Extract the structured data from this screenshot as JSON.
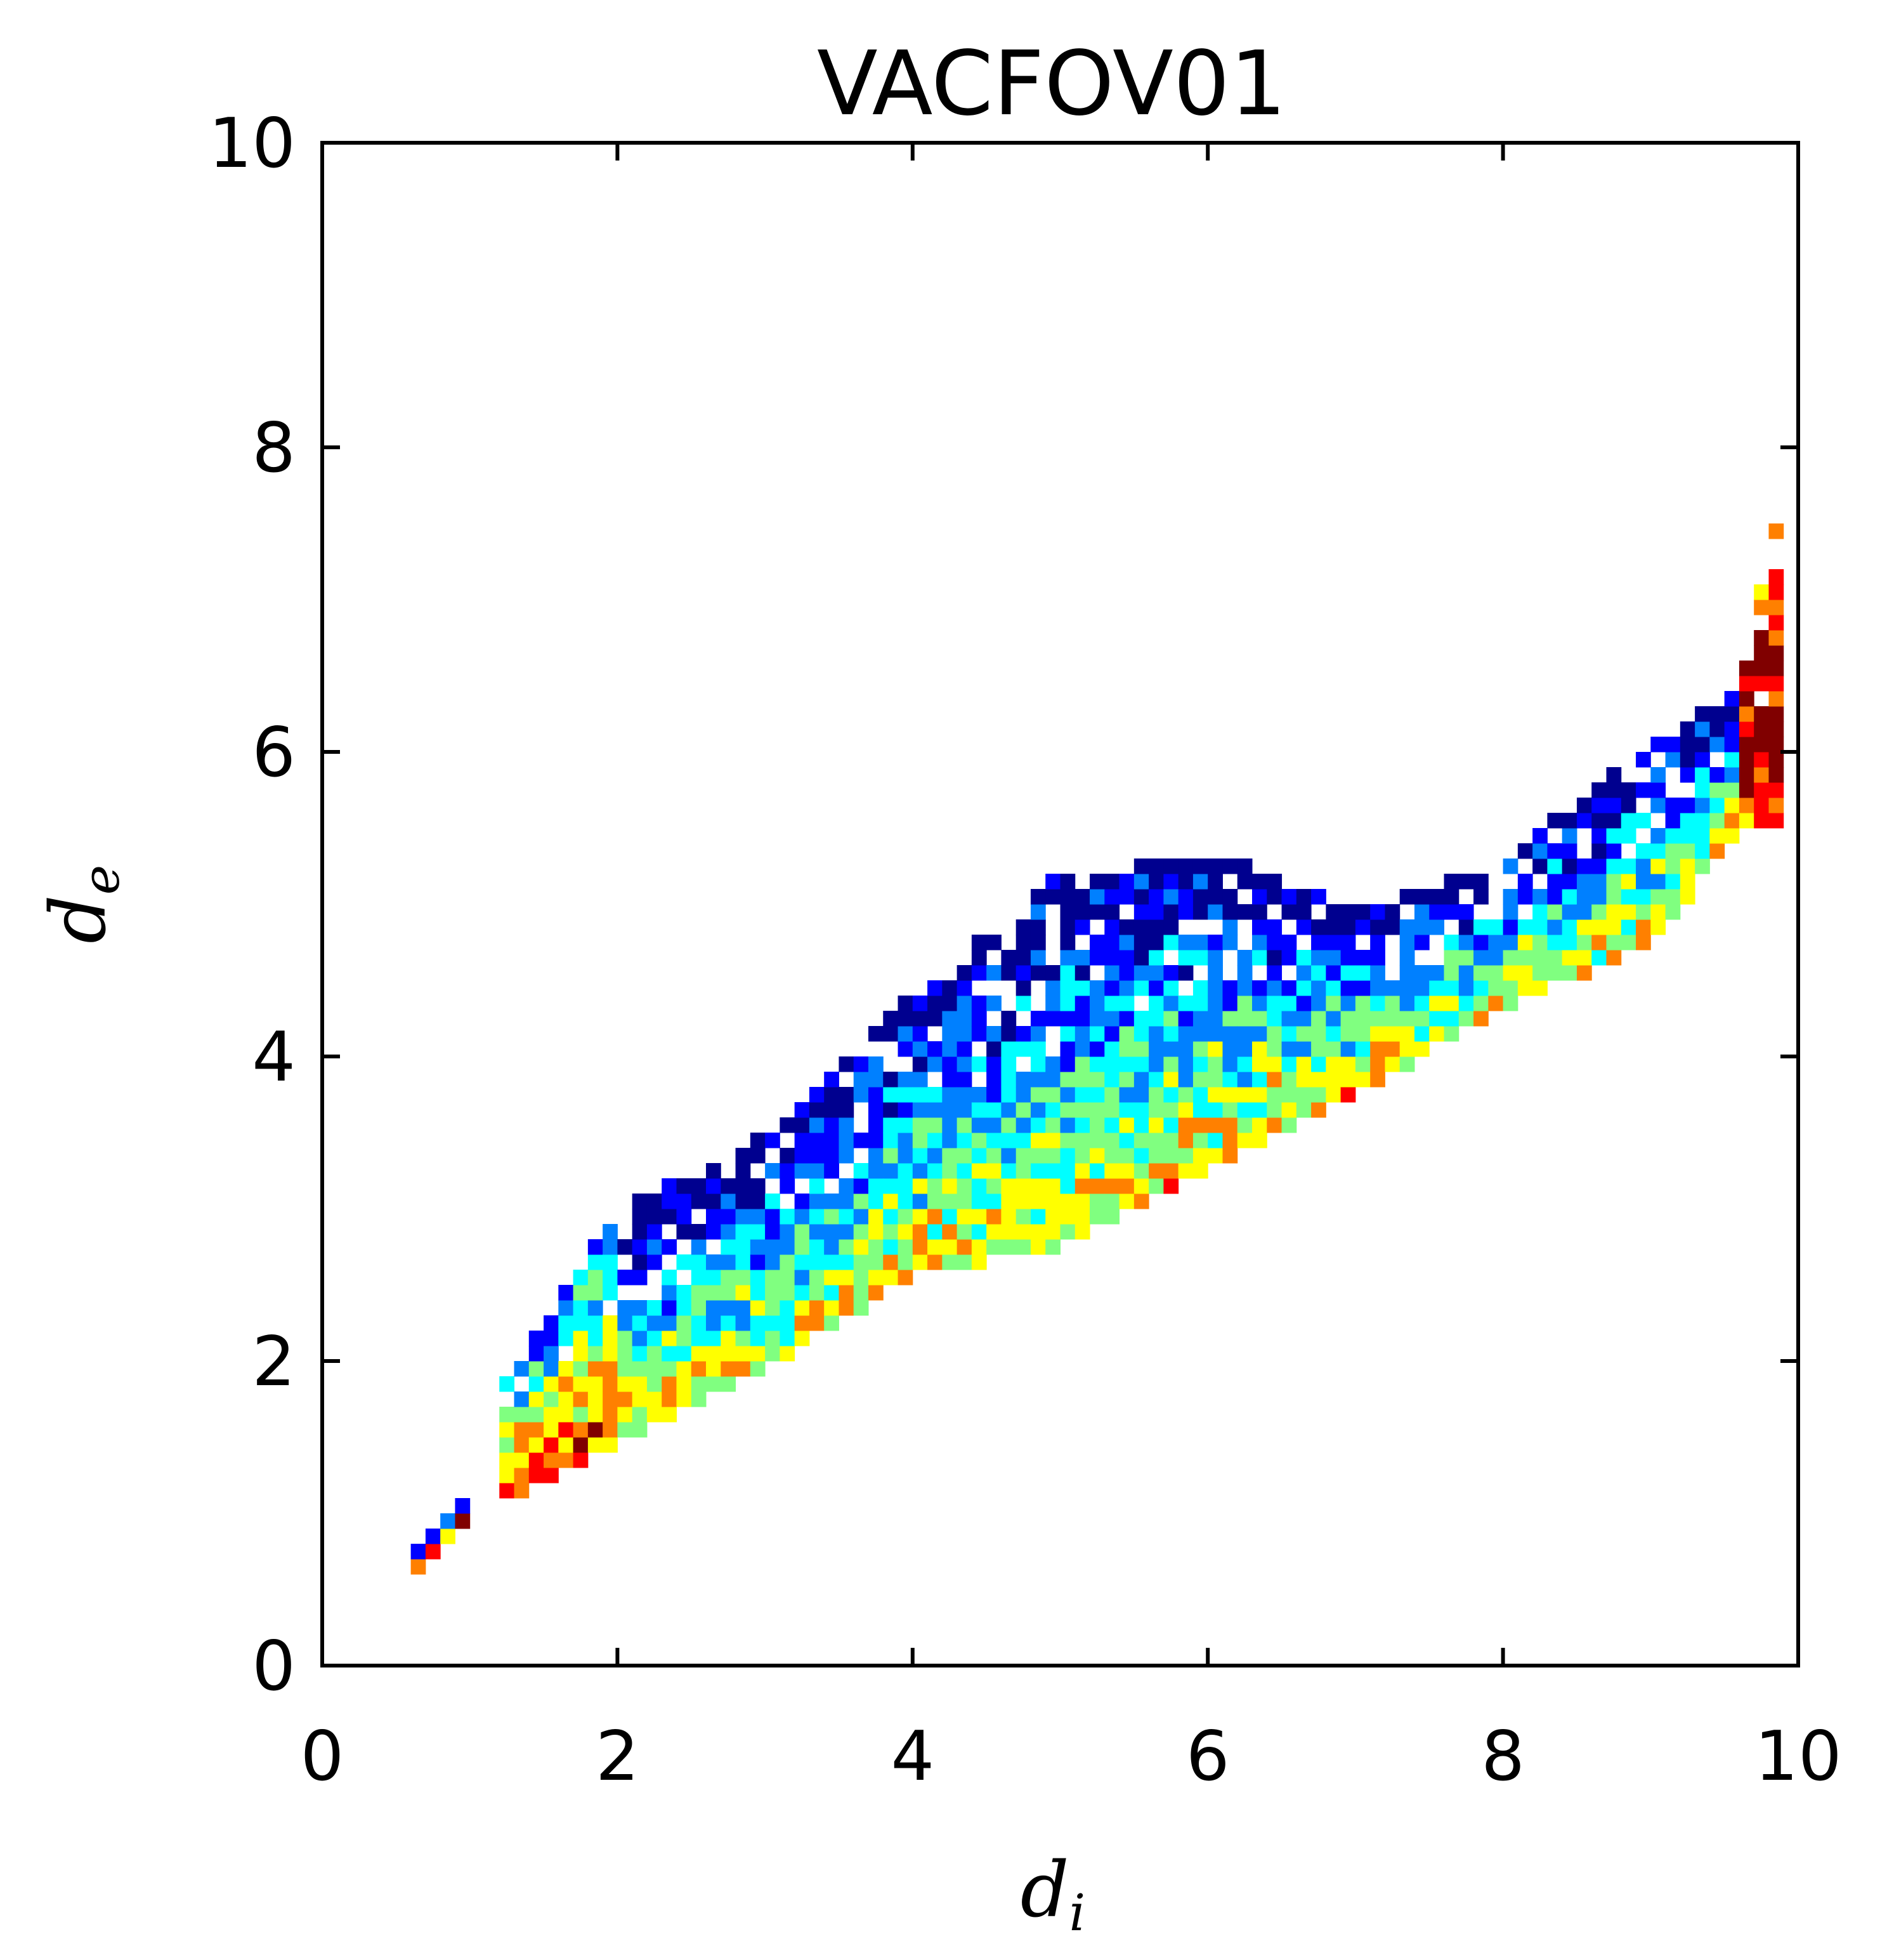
{
  "chart_data": {
    "type": "heatmap",
    "title": "VACFOV01",
    "xlabel": "d",
    "xlabel_sub": "i",
    "ylabel": "d",
    "ylabel_sub": "e",
    "xlim": [
      0,
      10
    ],
    "ylim": [
      0,
      10
    ],
    "xticks": [
      "0",
      "2",
      "4",
      "6",
      "8",
      "10"
    ],
    "yticks": [
      "0",
      "2",
      "4",
      "6",
      "8",
      "10"
    ],
    "bin_size": 0.1,
    "colormap": [
      "#00008f",
      "#0000ff",
      "#0080ff",
      "#00ffff",
      "#80ff80",
      "#ffff00",
      "#ff8000",
      "#ff0000",
      "#800000"
    ],
    "grid": false,
    "legend": "none",
    "density_bands": [
      {
        "x": [
          0.65,
          1.0
        ],
        "y_low": [
          0.62,
          1.0
        ],
        "y_high": [
          0.72,
          1.05
        ]
      },
      {
        "x": [
          1.2,
          2.0
        ],
        "y_low": [
          1.05,
          1.45
        ],
        "y_high": [
          1.75,
          2.95
        ]
      },
      {
        "x": [
          2.0,
          3.0
        ],
        "y_low": [
          1.45,
          1.95
        ],
        "y_high": [
          2.95,
          3.45
        ]
      },
      {
        "x": [
          3.0,
          4.0
        ],
        "y_low": [
          1.95,
          2.55
        ],
        "y_high": [
          3.45,
          4.35
        ]
      },
      {
        "x": [
          4.0,
          5.0
        ],
        "y_low": [
          2.55,
          2.75
        ],
        "y_high": [
          4.35,
          5.15
        ]
      },
      {
        "x": [
          5.0,
          6.0
        ],
        "y_low": [
          2.75,
          3.25
        ],
        "y_high": [
          5.15,
          5.3
        ]
      },
      {
        "x": [
          6.0,
          7.0
        ],
        "y_low": [
          3.25,
          3.75
        ],
        "y_high": [
          5.3,
          4.9
        ]
      },
      {
        "x": [
          7.0,
          8.0
        ],
        "y_low": [
          3.75,
          4.3
        ],
        "y_high": [
          4.9,
          5.25
        ]
      },
      {
        "x": [
          8.0,
          9.0
        ],
        "y_low": [
          4.3,
          4.75
        ],
        "y_high": [
          5.25,
          6.0
        ]
      },
      {
        "x": [
          9.0,
          9.6
        ],
        "y_low": [
          4.75,
          5.45
        ],
        "y_high": [
          6.0,
          6.35
        ]
      },
      {
        "x": [
          9.6,
          9.9
        ],
        "y_low": [
          5.45,
          5.55
        ],
        "y_high": [
          6.35,
          7.65
        ]
      }
    ]
  }
}
